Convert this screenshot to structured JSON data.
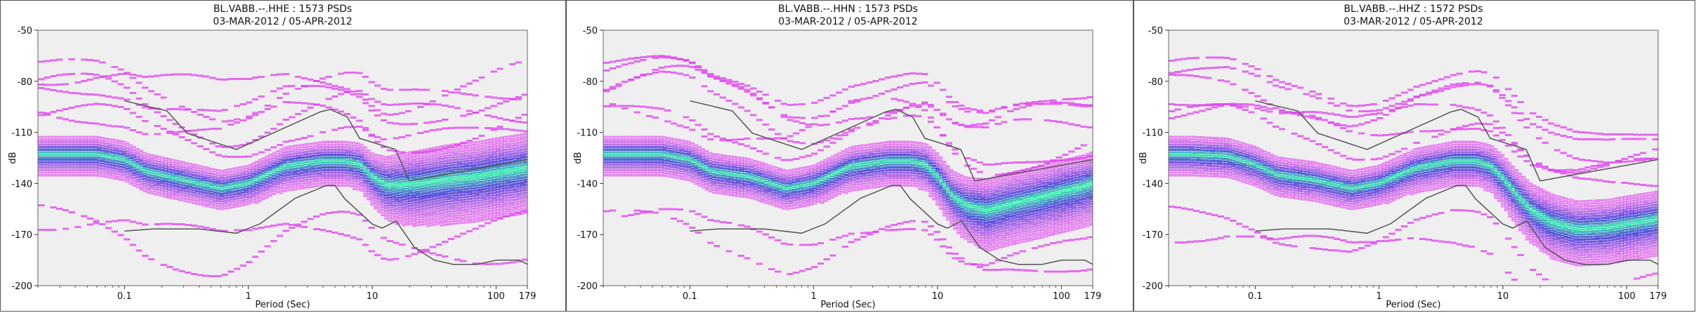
{
  "colors": {
    "plot_background": "#efefef",
    "noise_model_line": "#555555",
    "psd_density_low": "#e040f0",
    "psd_density_mid": "#3a2cd8",
    "psd_density_high": "#40ffb0"
  },
  "chart_data": [
    {
      "type": "heatmap",
      "title": "BL.VABB.--.HHE : 1573 PSDs",
      "subtitle": "03-MAR-2012 / 05-APR-2012",
      "xlabel": "Period (Sec)",
      "ylabel": "dB",
      "x_scale": "log",
      "xlim": [
        0.02,
        179
      ],
      "ylim": [
        -200,
        -50
      ],
      "x_ticks": [
        "0.1",
        "1",
        "10",
        "100",
        "179"
      ],
      "y_ticks": [
        "-50",
        "-80",
        "-110",
        "-140",
        "-170",
        "-200"
      ],
      "grid": false,
      "mode_curve": {
        "period": [
          0.03,
          0.06,
          0.1,
          0.15,
          0.3,
          0.6,
          1,
          2,
          4,
          6,
          8,
          10,
          13,
          17,
          25,
          40,
          70,
          100,
          150,
          179
        ],
        "db": [
          -122,
          -122,
          -125,
          -132,
          -137,
          -142,
          -139,
          -129,
          -126,
          -126,
          -128,
          -135,
          -140,
          -140,
          -139,
          -137,
          -135,
          -133,
          -131,
          -130
        ]
      },
      "spread_curve": {
        "period": [
          0.03,
          0.06,
          0.1,
          0.15,
          0.3,
          0.6,
          1,
          2,
          4,
          6,
          8,
          10,
          13,
          17,
          25,
          40,
          70,
          100,
          150,
          179
        ],
        "db": [
          10,
          10,
          10,
          10,
          10,
          10,
          10,
          11,
          11,
          11,
          12,
          13,
          16,
          18,
          19,
          20,
          20,
          20,
          20,
          20
        ]
      }
    },
    {
      "type": "heatmap",
      "title": "BL.VABB.--.HHN : 1573 PSDs",
      "subtitle": "03-MAR-2012 / 05-APR-2012",
      "xlabel": "Period (Sec)",
      "ylabel": "dB",
      "x_scale": "log",
      "xlim": [
        0.02,
        179
      ],
      "ylim": [
        -200,
        -50
      ],
      "x_ticks": [
        "0.1",
        "1",
        "10",
        "100",
        "179"
      ],
      "y_ticks": [
        "-50",
        "-80",
        "-110",
        "-140",
        "-170",
        "-200"
      ],
      "grid": false,
      "mode_curve": {
        "period": [
          0.03,
          0.06,
          0.1,
          0.15,
          0.3,
          0.6,
          1,
          2,
          4,
          6,
          8,
          10,
          13,
          17,
          25,
          40,
          70,
          100,
          150,
          179
        ],
        "db": [
          -122,
          -122,
          -125,
          -132,
          -135,
          -142,
          -139,
          -129,
          -126,
          -126,
          -128,
          -135,
          -146,
          -152,
          -155,
          -151,
          -147,
          -144,
          -141,
          -139
        ]
      },
      "spread_curve": {
        "period": [
          0.03,
          0.06,
          0.1,
          0.15,
          0.3,
          0.6,
          1,
          2,
          4,
          6,
          8,
          10,
          13,
          17,
          25,
          40,
          70,
          100,
          150,
          179
        ],
        "db": [
          10,
          10,
          10,
          10,
          10,
          10,
          10,
          11,
          11,
          11,
          12,
          13,
          14,
          16,
          18,
          18,
          18,
          18,
          18,
          18
        ]
      }
    },
    {
      "type": "heatmap",
      "title": "BL.VABB.--.HHZ : 1572 PSDs",
      "subtitle": "03-MAR-2012 / 05-APR-2012",
      "xlabel": "Period (Sec)",
      "ylabel": "dB",
      "x_scale": "log",
      "xlim": [
        0.02,
        179
      ],
      "ylim": [
        -200,
        -50
      ],
      "x_ticks": [
        "0.1",
        "1",
        "10",
        "100",
        "179"
      ],
      "y_ticks": [
        "-50",
        "-80",
        "-110",
        "-140",
        "-170",
        "-200"
      ],
      "grid": false,
      "mode_curve": {
        "period": [
          0.03,
          0.06,
          0.1,
          0.15,
          0.3,
          0.6,
          1,
          2,
          4,
          6,
          8,
          10,
          13,
          17,
          25,
          40,
          70,
          100,
          150,
          179
        ],
        "db": [
          -122,
          -123,
          -128,
          -134,
          -137,
          -142,
          -139,
          -130,
          -126,
          -126,
          -129,
          -136,
          -146,
          -155,
          -162,
          -166,
          -165,
          -163,
          -161,
          -160
        ]
      },
      "spread_curve": {
        "period": [
          0.03,
          0.06,
          0.1,
          0.15,
          0.3,
          0.6,
          1,
          2,
          4,
          6,
          8,
          10,
          13,
          17,
          25,
          40,
          70,
          100,
          150,
          179
        ],
        "db": [
          10,
          10,
          10,
          10,
          10,
          10,
          10,
          11,
          11,
          11,
          12,
          13,
          14,
          15,
          16,
          16,
          16,
          16,
          16,
          16
        ]
      }
    }
  ],
  "noise_models": {
    "high": {
      "period": [
        0.1,
        0.22,
        0.32,
        0.8,
        3.8,
        4.6,
        6.3,
        7.9,
        15.4,
        20,
        354.8
      ],
      "db": [
        -91.5,
        -97.4,
        -110.5,
        -120,
        -98,
        -96.5,
        -101,
        -113.5,
        -120,
        -138.5,
        -126
      ]
    },
    "low": {
      "period": [
        0.1,
        0.17,
        0.4,
        0.8,
        1.24,
        2.4,
        4.3,
        5,
        6,
        10,
        12,
        15.6,
        21.9,
        31.6,
        45,
        70,
        101,
        154,
        328,
        600
      ],
      "db": [
        -168,
        -166.7,
        -166.7,
        -169.2,
        -163.7,
        -148.6,
        -141.1,
        -141.1,
        -149,
        -163.8,
        -166.2,
        -162.1,
        -177.5,
        -185,
        -187.5,
        -187.5,
        -185,
        -185,
        -187.5,
        -184.4
      ]
    }
  }
}
